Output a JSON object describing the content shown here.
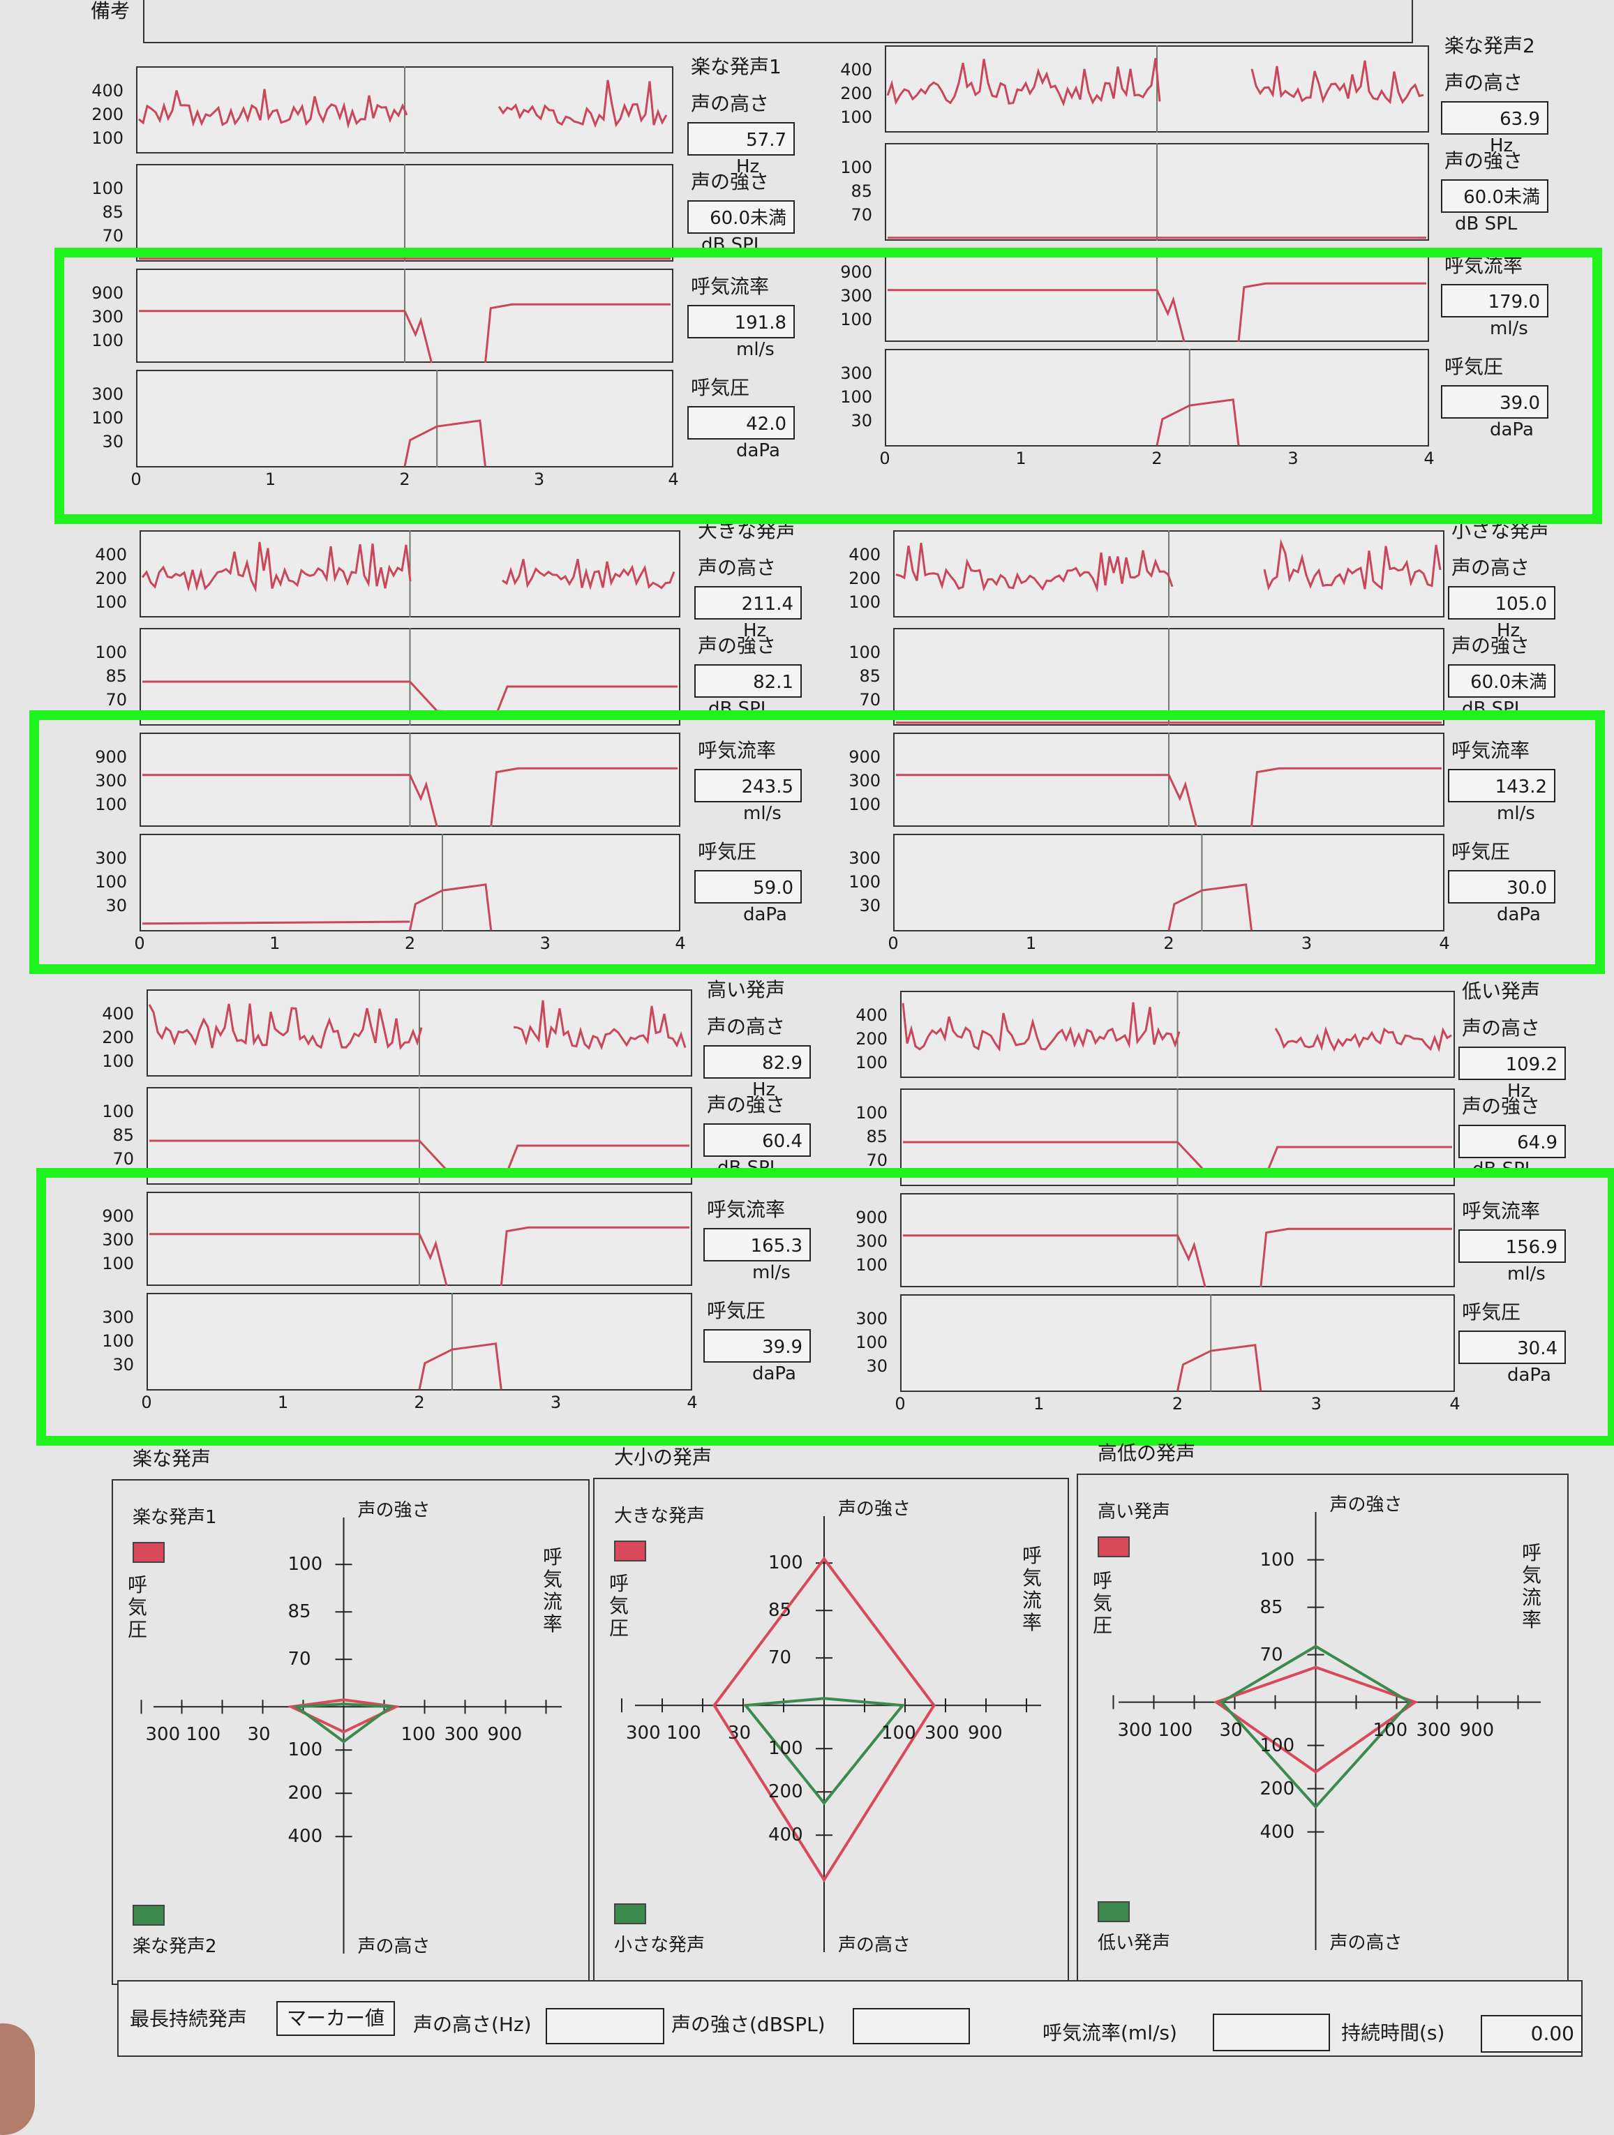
{
  "header": {
    "remarks_label": "備考"
  },
  "panels": [
    {
      "id": "p1",
      "title": "楽な発声1",
      "pitch_label": "声の高さ",
      "pitch_value": "57.7",
      "pitch_unit": "Hz",
      "intensity_label": "声の強さ",
      "intensity_value": "60.0未満",
      "intensity_unit": "dB SPL",
      "flow_label": "呼気流率",
      "flow_value": "191.8",
      "flow_unit": "ml/s",
      "pressure_label": "呼気圧",
      "pressure_value": "42.0",
      "pressure_unit": "daPa"
    },
    {
      "id": "p2",
      "title": "楽な発声2",
      "pitch_label": "声の高さ",
      "pitch_value": "63.9",
      "pitch_unit": "Hz",
      "intensity_label": "声の強さ",
      "intensity_value": "60.0未満",
      "intensity_unit": "dB SPL",
      "flow_label": "呼気流率",
      "flow_value": "179.0",
      "flow_unit": "ml/s",
      "pressure_label": "呼気圧",
      "pressure_value": "39.0",
      "pressure_unit": "daPa"
    },
    {
      "id": "p3",
      "title": "大きな発声",
      "pitch_label": "声の高さ",
      "pitch_value": "211.4",
      "pitch_unit": "Hz",
      "intensity_label": "声の強さ",
      "intensity_value": "82.1",
      "intensity_unit": "dB SPL",
      "flow_label": "呼気流率",
      "flow_value": "243.5",
      "flow_unit": "ml/s",
      "pressure_label": "呼気圧",
      "pressure_value": "59.0",
      "pressure_unit": "daPa"
    },
    {
      "id": "p4",
      "title": "小さな発声",
      "pitch_label": "声の高さ",
      "pitch_value": "105.0",
      "pitch_unit": "Hz",
      "intensity_label": "声の強さ",
      "intensity_value": "60.0未満",
      "intensity_unit": "dB SPL",
      "flow_label": "呼気流率",
      "flow_value": "143.2",
      "flow_unit": "ml/s",
      "pressure_label": "呼気圧",
      "pressure_value": "30.0",
      "pressure_unit": "daPa"
    },
    {
      "id": "p5",
      "title": "高い発声",
      "pitch_label": "声の高さ",
      "pitch_value": "82.9",
      "pitch_unit": "Hz",
      "intensity_label": "声の強さ",
      "intensity_value": "60.4",
      "intensity_unit": "dB SPL",
      "flow_label": "呼気流率",
      "flow_value": "165.3",
      "flow_unit": "ml/s",
      "pressure_label": "呼気圧",
      "pressure_value": "39.9",
      "pressure_unit": "daPa"
    },
    {
      "id": "p6",
      "title": "低い発声",
      "pitch_label": "声の高さ",
      "pitch_value": "109.2",
      "pitch_unit": "Hz",
      "intensity_label": "声の強さ",
      "intensity_value": "64.9",
      "intensity_unit": "dB SPL",
      "flow_label": "呼気流率",
      "flow_value": "156.9",
      "flow_unit": "ml/s",
      "pressure_label": "呼気圧",
      "pressure_value": "30.4",
      "pressure_unit": "daPa"
    }
  ],
  "axis_ticks": {
    "pitch": [
      "400",
      "200",
      "100"
    ],
    "intensity": [
      "100",
      "85",
      "70"
    ],
    "flow": [
      "900",
      "300",
      "100"
    ],
    "pressure": [
      "300",
      "100",
      "30"
    ],
    "time": [
      "0",
      "1",
      "2",
      "3",
      "4"
    ]
  },
  "radar": [
    {
      "title": "楽な発声",
      "legend_top": "楽な発声1",
      "legend_bottom": "楽な発声2",
      "colors": {
        "top": "#d84a5a",
        "bottom": "#3d8a4e"
      }
    },
    {
      "title": "大小の発声",
      "legend_top": "大きな発声",
      "legend_bottom": "小さな発声",
      "colors": {
        "top": "#d84a5a",
        "bottom": "#3d8a4e"
      }
    },
    {
      "title": "高低の発声",
      "legend_top": "高い発声",
      "legend_bottom": "低い発声",
      "colors": {
        "top": "#d84a5a",
        "bottom": "#3d8a4e"
      }
    }
  ],
  "radar_axes": {
    "top": "声の強さ",
    "bottom": "声の高さ",
    "left": "呼気圧",
    "right": "呼気流率",
    "up_ticks": [
      "100",
      "85",
      "70"
    ],
    "down_ticks": [
      "100",
      "200",
      "400"
    ],
    "left_ticks": [
      "300",
      "100",
      "30"
    ],
    "right_ticks": [
      "100",
      "300",
      "900"
    ]
  },
  "footer": {
    "label": "最長持続発声",
    "marker_button": "マーカー値",
    "pitch_label": "声の高さ(Hz)",
    "pitch_value": "",
    "intensity_label": "声の強さ(dBSPL)",
    "intensity_value": "",
    "flow_label": "呼気流率(ml/s)",
    "flow_value": "",
    "duration_label": "持続時間(s)",
    "duration_value": "0.00"
  },
  "colors": {
    "trace": "#c9475a",
    "highlight": "#1ff21f",
    "marker_line": "#6d7a6d"
  }
}
